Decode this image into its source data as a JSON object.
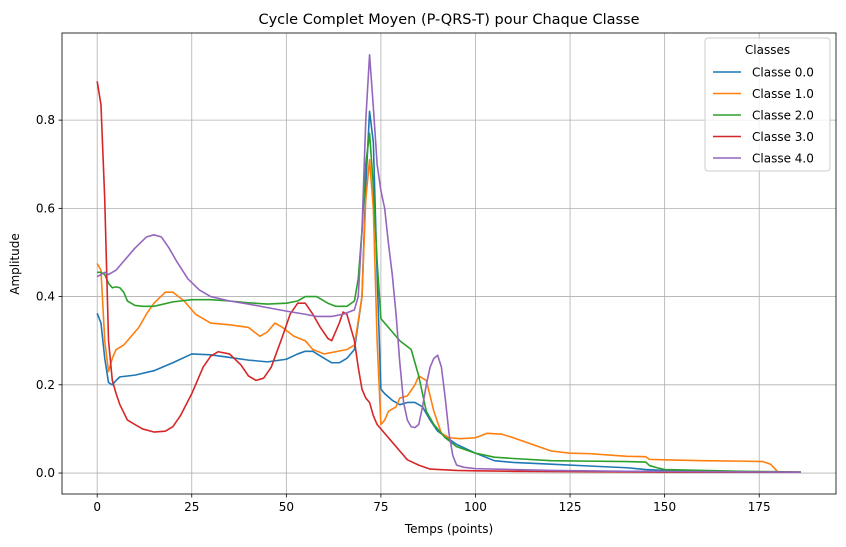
{
  "chart_data": {
    "type": "line",
    "title": "Cycle Complet Moyen (P-QRS-T) pour Chaque Classe",
    "xlabel": "Temps (points)",
    "ylabel": "Amplitude",
    "xlim": [
      -9.3,
      195.3
    ],
    "ylim": [
      -0.0475,
      0.9975
    ],
    "xticks": [
      0,
      25,
      50,
      75,
      100,
      125,
      150,
      175
    ],
    "yticks": [
      0.0,
      0.2,
      0.4,
      0.6,
      0.8
    ],
    "ytick_labels": [
      "0.0",
      "0.2",
      "0.4",
      "0.6",
      "0.8"
    ],
    "grid": true,
    "legend": {
      "title": "Classes",
      "placement": "top-right"
    },
    "series": [
      {
        "name": "Classe 0.0",
        "color": "#1f77b4",
        "points": [
          [
            0,
            0.362
          ],
          [
            1,
            0.34
          ],
          [
            2,
            0.26
          ],
          [
            3,
            0.205
          ],
          [
            4,
            0.2
          ],
          [
            5,
            0.21
          ],
          [
            6,
            0.218
          ],
          [
            8,
            0.22
          ],
          [
            10,
            0.222
          ],
          [
            15,
            0.232
          ],
          [
            20,
            0.25
          ],
          [
            25,
            0.27
          ],
          [
            30,
            0.268
          ],
          [
            35,
            0.262
          ],
          [
            40,
            0.256
          ],
          [
            45,
            0.252
          ],
          [
            50,
            0.258
          ],
          [
            53,
            0.27
          ],
          [
            55,
            0.276
          ],
          [
            57,
            0.276
          ],
          [
            60,
            0.26
          ],
          [
            62,
            0.25
          ],
          [
            64,
            0.25
          ],
          [
            66,
            0.26
          ],
          [
            68,
            0.28
          ],
          [
            70,
            0.4
          ],
          [
            71,
            0.65
          ],
          [
            72,
            0.82
          ],
          [
            73,
            0.75
          ],
          [
            74,
            0.45
          ],
          [
            75,
            0.19
          ],
          [
            76,
            0.18
          ],
          [
            78,
            0.165
          ],
          [
            80,
            0.155
          ],
          [
            82,
            0.16
          ],
          [
            84,
            0.16
          ],
          [
            86,
            0.15
          ],
          [
            88,
            0.12
          ],
          [
            90,
            0.095
          ],
          [
            95,
            0.065
          ],
          [
            100,
            0.045
          ],
          [
            105,
            0.028
          ],
          [
            110,
            0.024
          ],
          [
            120,
            0.02
          ],
          [
            130,
            0.016
          ],
          [
            140,
            0.012
          ],
          [
            145,
            0.008
          ],
          [
            150,
            0.006
          ],
          [
            160,
            0.004
          ],
          [
            170,
            0.003
          ],
          [
            180,
            0.002
          ],
          [
            186,
            0.002
          ]
        ]
      },
      {
        "name": "Classe 1.0",
        "color": "#ff7f0e",
        "points": [
          [
            0,
            0.475
          ],
          [
            1,
            0.46
          ],
          [
            2,
            0.3
          ],
          [
            3,
            0.23
          ],
          [
            4,
            0.26
          ],
          [
            5,
            0.28
          ],
          [
            7,
            0.29
          ],
          [
            9,
            0.31
          ],
          [
            11,
            0.33
          ],
          [
            13,
            0.36
          ],
          [
            15,
            0.385
          ],
          [
            18,
            0.41
          ],
          [
            20,
            0.41
          ],
          [
            23,
            0.39
          ],
          [
            26,
            0.36
          ],
          [
            30,
            0.34
          ],
          [
            35,
            0.336
          ],
          [
            40,
            0.33
          ],
          [
            43,
            0.31
          ],
          [
            45,
            0.32
          ],
          [
            47,
            0.34
          ],
          [
            49,
            0.33
          ],
          [
            52,
            0.31
          ],
          [
            55,
            0.3
          ],
          [
            57,
            0.28
          ],
          [
            60,
            0.27
          ],
          [
            63,
            0.275
          ],
          [
            66,
            0.28
          ],
          [
            68,
            0.29
          ],
          [
            70,
            0.4
          ],
          [
            71,
            0.62
          ],
          [
            72,
            0.71
          ],
          [
            73,
            0.6
          ],
          [
            74,
            0.3
          ],
          [
            75,
            0.11
          ],
          [
            76,
            0.12
          ],
          [
            77,
            0.14
          ],
          [
            79,
            0.15
          ],
          [
            80,
            0.17
          ],
          [
            82,
            0.175
          ],
          [
            84,
            0.2
          ],
          [
            85,
            0.22
          ],
          [
            87,
            0.21
          ],
          [
            89,
            0.14
          ],
          [
            91,
            0.09
          ],
          [
            93,
            0.08
          ],
          [
            96,
            0.078
          ],
          [
            100,
            0.08
          ],
          [
            103,
            0.09
          ],
          [
            107,
            0.088
          ],
          [
            110,
            0.08
          ],
          [
            115,
            0.065
          ],
          [
            120,
            0.05
          ],
          [
            125,
            0.045
          ],
          [
            130,
            0.044
          ],
          [
            140,
            0.038
          ],
          [
            145,
            0.037
          ],
          [
            146,
            0.031
          ],
          [
            150,
            0.03
          ],
          [
            160,
            0.028
          ],
          [
            170,
            0.027
          ],
          [
            176,
            0.026
          ],
          [
            178,
            0.02
          ],
          [
            180,
            0.002
          ],
          [
            186,
            0.002
          ]
        ]
      },
      {
        "name": "Classe 2.0",
        "color": "#2ca02c",
        "points": [
          [
            0,
            0.455
          ],
          [
            1,
            0.455
          ],
          [
            2,
            0.45
          ],
          [
            3,
            0.43
          ],
          [
            4,
            0.42
          ],
          [
            5,
            0.422
          ],
          [
            6,
            0.42
          ],
          [
            7,
            0.41
          ],
          [
            8,
            0.39
          ],
          [
            10,
            0.38
          ],
          [
            12,
            0.378
          ],
          [
            15,
            0.378
          ],
          [
            20,
            0.388
          ],
          [
            25,
            0.393
          ],
          [
            30,
            0.393
          ],
          [
            35,
            0.39
          ],
          [
            40,
            0.386
          ],
          [
            45,
            0.383
          ],
          [
            50,
            0.385
          ],
          [
            53,
            0.39
          ],
          [
            55,
            0.4
          ],
          [
            58,
            0.4
          ],
          [
            61,
            0.385
          ],
          [
            63,
            0.378
          ],
          [
            66,
            0.378
          ],
          [
            68,
            0.39
          ],
          [
            69,
            0.44
          ],
          [
            70,
            0.55
          ],
          [
            71,
            0.7
          ],
          [
            72,
            0.77
          ],
          [
            73,
            0.65
          ],
          [
            74,
            0.48
          ],
          [
            75,
            0.35
          ],
          [
            76,
            0.34
          ],
          [
            78,
            0.32
          ],
          [
            80,
            0.3
          ],
          [
            83,
            0.28
          ],
          [
            85,
            0.22
          ],
          [
            87,
            0.14
          ],
          [
            89,
            0.11
          ],
          [
            92,
            0.08
          ],
          [
            95,
            0.06
          ],
          [
            100,
            0.045
          ],
          [
            105,
            0.036
          ],
          [
            110,
            0.033
          ],
          [
            120,
            0.028
          ],
          [
            130,
            0.027
          ],
          [
            140,
            0.026
          ],
          [
            145,
            0.025
          ],
          [
            146,
            0.017
          ],
          [
            148,
            0.012
          ],
          [
            150,
            0.008
          ],
          [
            160,
            0.006
          ],
          [
            170,
            0.004
          ],
          [
            180,
            0.003
          ],
          [
            186,
            0.002
          ]
        ]
      },
      {
        "name": "Classe 3.0",
        "color": "#d62728",
        "points": [
          [
            0,
            0.888
          ],
          [
            1,
            0.835
          ],
          [
            2,
            0.62
          ],
          [
            3,
            0.3
          ],
          [
            4,
            0.21
          ],
          [
            5,
            0.18
          ],
          [
            6,
            0.155
          ],
          [
            8,
            0.12
          ],
          [
            10,
            0.11
          ],
          [
            12,
            0.1
          ],
          [
            15,
            0.093
          ],
          [
            18,
            0.095
          ],
          [
            20,
            0.105
          ],
          [
            22,
            0.13
          ],
          [
            25,
            0.18
          ],
          [
            28,
            0.24
          ],
          [
            30,
            0.265
          ],
          [
            32,
            0.275
          ],
          [
            35,
            0.27
          ],
          [
            38,
            0.245
          ],
          [
            40,
            0.22
          ],
          [
            42,
            0.21
          ],
          [
            44,
            0.215
          ],
          [
            46,
            0.24
          ],
          [
            49,
            0.31
          ],
          [
            51,
            0.36
          ],
          [
            53,
            0.385
          ],
          [
            55,
            0.385
          ],
          [
            57,
            0.36
          ],
          [
            59,
            0.33
          ],
          [
            61,
            0.305
          ],
          [
            62,
            0.3
          ],
          [
            64,
            0.34
          ],
          [
            65,
            0.365
          ],
          [
            66,
            0.36
          ],
          [
            68,
            0.3
          ],
          [
            69,
            0.24
          ],
          [
            70,
            0.19
          ],
          [
            71,
            0.17
          ],
          [
            72,
            0.16
          ],
          [
            73,
            0.13
          ],
          [
            74,
            0.11
          ],
          [
            76,
            0.09
          ],
          [
            78,
            0.07
          ],
          [
            80,
            0.05
          ],
          [
            82,
            0.03
          ],
          [
            85,
            0.018
          ],
          [
            88,
            0.009
          ],
          [
            95,
            0.006
          ],
          [
            100,
            0.005
          ],
          [
            110,
            0.004
          ],
          [
            130,
            0.003
          ],
          [
            150,
            0.002
          ],
          [
            170,
            0.002
          ],
          [
            186,
            0.002
          ]
        ]
      },
      {
        "name": "Classe 4.0",
        "color": "#9467bd",
        "points": [
          [
            0,
            0.445
          ],
          [
            1,
            0.45
          ],
          [
            2,
            0.455
          ],
          [
            3,
            0.45
          ],
          [
            5,
            0.46
          ],
          [
            7,
            0.48
          ],
          [
            10,
            0.51
          ],
          [
            13,
            0.535
          ],
          [
            15,
            0.54
          ],
          [
            17,
            0.535
          ],
          [
            19,
            0.51
          ],
          [
            21,
            0.48
          ],
          [
            24,
            0.44
          ],
          [
            27,
            0.415
          ],
          [
            30,
            0.4
          ],
          [
            35,
            0.39
          ],
          [
            40,
            0.383
          ],
          [
            45,
            0.375
          ],
          [
            50,
            0.367
          ],
          [
            55,
            0.36
          ],
          [
            58,
            0.355
          ],
          [
            62,
            0.355
          ],
          [
            65,
            0.36
          ],
          [
            68,
            0.37
          ],
          [
            69,
            0.4
          ],
          [
            70,
            0.55
          ],
          [
            71,
            0.8
          ],
          [
            72,
            0.948
          ],
          [
            73,
            0.83
          ],
          [
            74,
            0.7
          ],
          [
            75,
            0.64
          ],
          [
            76,
            0.6
          ],
          [
            77,
            0.52
          ],
          [
            78,
            0.45
          ],
          [
            79,
            0.36
          ],
          [
            80,
            0.25
          ],
          [
            81,
            0.16
          ],
          [
            82,
            0.12
          ],
          [
            83,
            0.105
          ],
          [
            84,
            0.103
          ],
          [
            85,
            0.11
          ],
          [
            86,
            0.15
          ],
          [
            87,
            0.2
          ],
          [
            88,
            0.24
          ],
          [
            89,
            0.26
          ],
          [
            90,
            0.267
          ],
          [
            91,
            0.24
          ],
          [
            92,
            0.17
          ],
          [
            93,
            0.09
          ],
          [
            94,
            0.04
          ],
          [
            95,
            0.018
          ],
          [
            97,
            0.013
          ],
          [
            100,
            0.01
          ],
          [
            110,
            0.008
          ],
          [
            120,
            0.006
          ],
          [
            140,
            0.004
          ],
          [
            160,
            0.003
          ],
          [
            186,
            0.002
          ]
        ]
      }
    ]
  }
}
